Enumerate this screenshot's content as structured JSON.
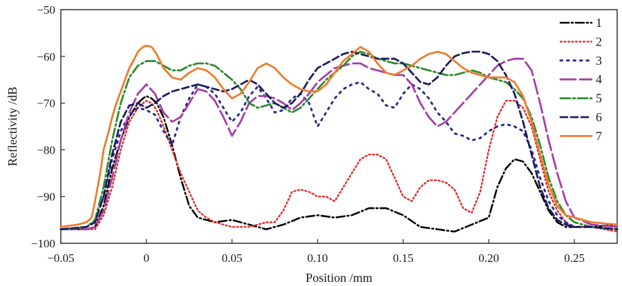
{
  "chart_data": {
    "type": "line",
    "title": "",
    "xlabel": "Position /mm",
    "ylabel": "Reflectivity /dB",
    "xlim": [
      -0.05,
      0.275
    ],
    "ylim": [
      -100,
      -50
    ],
    "xticks": [
      -0.05,
      0,
      0.05,
      0.1,
      0.15,
      0.2,
      0.25
    ],
    "xtick_labels": [
      "−0.05",
      "0",
      "0.05",
      "0.10",
      "0.15",
      "0.20",
      "0.25"
    ],
    "yticks": [
      -100,
      -90,
      -80,
      -70,
      -60,
      -50
    ],
    "ytick_labels": [
      "−100",
      "−90",
      "−80",
      "−70",
      "−60",
      "−50"
    ],
    "grid": false,
    "legend_position": "top-right",
    "series": [
      {
        "name": "1",
        "color": "#000000",
        "dash": "12,4,2,4",
        "width": 2.6,
        "x": [
          -0.05,
          -0.035,
          -0.03,
          -0.025,
          -0.02,
          -0.015,
          -0.01,
          -0.005,
          -0.002,
          0.0,
          0.003,
          0.006,
          0.01,
          0.015,
          0.02,
          0.025,
          0.03,
          0.035,
          0.04,
          0.05,
          0.06,
          0.07,
          0.08,
          0.09,
          0.1,
          0.11,
          0.12,
          0.13,
          0.14,
          0.15,
          0.16,
          0.17,
          0.18,
          0.19,
          0.2,
          0.205,
          0.21,
          0.215,
          0.22,
          0.225,
          0.23,
          0.235,
          0.24,
          0.245,
          0.25,
          0.26,
          0.275
        ],
        "y": [
          -97,
          -97,
          -96.5,
          -92,
          -84,
          -78,
          -73,
          -70,
          -69,
          -68.5,
          -69,
          -70,
          -73,
          -79,
          -86,
          -92,
          -94.5,
          -95,
          -95.5,
          -95,
          -96,
          -97,
          -96,
          -94.5,
          -94,
          -94.5,
          -94,
          -92.5,
          -92.5,
          -94,
          -96.5,
          -97,
          -97.5,
          -96,
          -94.5,
          -88,
          -84,
          -82,
          -82.5,
          -85,
          -89,
          -93,
          -95.5,
          -96.5,
          -96.5,
          -96.5,
          -96
        ]
      },
      {
        "name": "2",
        "color": "#e82424",
        "dash": "2,3.5",
        "width": 2.4,
        "x": [
          -0.05,
          -0.035,
          -0.03,
          -0.025,
          -0.02,
          -0.015,
          -0.01,
          -0.005,
          -0.002,
          0.0,
          0.003,
          0.006,
          0.01,
          0.015,
          0.02,
          0.025,
          0.03,
          0.035,
          0.04,
          0.05,
          0.06,
          0.07,
          0.075,
          0.08,
          0.085,
          0.09,
          0.095,
          0.1,
          0.105,
          0.11,
          0.115,
          0.12,
          0.125,
          0.13,
          0.135,
          0.14,
          0.145,
          0.15,
          0.155,
          0.16,
          0.165,
          0.17,
          0.175,
          0.18,
          0.185,
          0.19,
          0.195,
          0.2,
          0.205,
          0.21,
          0.215,
          0.22,
          0.225,
          0.23,
          0.235,
          0.24,
          0.245,
          0.25,
          0.26,
          0.275
        ],
        "y": [
          -97,
          -97,
          -97,
          -94,
          -88,
          -80,
          -74,
          -71,
          -70,
          -69.5,
          -70,
          -71.5,
          -75,
          -80,
          -85,
          -89,
          -93,
          -94.5,
          -95.5,
          -96.5,
          -96.5,
          -95.5,
          -95.5,
          -93,
          -89,
          -88.5,
          -89,
          -90,
          -90,
          -91,
          -88,
          -85,
          -82,
          -81,
          -81,
          -82,
          -86,
          -90,
          -91,
          -88,
          -86.5,
          -86.5,
          -87,
          -88.5,
          -92.5,
          -93.5,
          -89,
          -80,
          -73,
          -69.5,
          -69.5,
          -71,
          -75,
          -82,
          -89,
          -93,
          -95.5,
          -96.5,
          -96.5,
          -97.5
        ]
      },
      {
        "name": "3",
        "color": "#2a2a8f",
        "dash": "2.5,7",
        "width": 3.0,
        "x": [
          -0.05,
          -0.035,
          -0.03,
          -0.025,
          -0.02,
          -0.015,
          -0.01,
          -0.005,
          0.0,
          0.005,
          0.01,
          0.015,
          0.02,
          0.025,
          0.03,
          0.035,
          0.04,
          0.045,
          0.05,
          0.055,
          0.06,
          0.065,
          0.07,
          0.075,
          0.08,
          0.085,
          0.09,
          0.095,
          0.1,
          0.105,
          0.11,
          0.115,
          0.12,
          0.125,
          0.13,
          0.135,
          0.14,
          0.145,
          0.15,
          0.155,
          0.16,
          0.165,
          0.17,
          0.175,
          0.18,
          0.185,
          0.19,
          0.195,
          0.2,
          0.205,
          0.21,
          0.215,
          0.22,
          0.225,
          0.23,
          0.235,
          0.24,
          0.245,
          0.25,
          0.26,
          0.275
        ],
        "y": [
          -97,
          -96.5,
          -95.5,
          -90,
          -82,
          -76,
          -72.5,
          -71,
          -71.5,
          -72.5,
          -76,
          -79,
          -73,
          -69,
          -66,
          -66.5,
          -68,
          -71,
          -74,
          -72,
          -68.5,
          -66.5,
          -69,
          -72,
          -71.5,
          -69,
          -68,
          -70,
          -75,
          -72,
          -69,
          -67,
          -66,
          -65.5,
          -67,
          -68,
          -70.5,
          -71,
          -68,
          -66,
          -67,
          -69,
          -72,
          -74,
          -76.5,
          -77,
          -78,
          -77.5,
          -76,
          -75,
          -74.5,
          -75,
          -76,
          -80,
          -86,
          -91,
          -94,
          -95.5,
          -96.5,
          -96.5,
          -97
        ]
      },
      {
        "name": "4",
        "color": "#a63da6",
        "dash": "22,6",
        "width": 2.8,
        "x": [
          -0.05,
          -0.035,
          -0.03,
          -0.025,
          -0.02,
          -0.015,
          -0.01,
          -0.005,
          0.0,
          0.005,
          0.01,
          0.015,
          0.02,
          0.025,
          0.03,
          0.035,
          0.04,
          0.045,
          0.05,
          0.055,
          0.06,
          0.065,
          0.07,
          0.075,
          0.08,
          0.085,
          0.09,
          0.095,
          0.1,
          0.105,
          0.11,
          0.115,
          0.12,
          0.125,
          0.13,
          0.135,
          0.14,
          0.145,
          0.15,
          0.155,
          0.16,
          0.165,
          0.17,
          0.175,
          0.18,
          0.185,
          0.19,
          0.195,
          0.2,
          0.205,
          0.21,
          0.215,
          0.22,
          0.225,
          0.23,
          0.235,
          0.24,
          0.245,
          0.25,
          0.26,
          0.275
        ],
        "y": [
          -97,
          -97,
          -96.5,
          -93,
          -86,
          -78,
          -72,
          -68,
          -66,
          -68,
          -72,
          -74,
          -73,
          -70,
          -67,
          -67.5,
          -69.5,
          -73,
          -77,
          -74,
          -70,
          -68.5,
          -68.5,
          -69,
          -70,
          -71.5,
          -70,
          -68,
          -65.5,
          -64,
          -62.5,
          -62,
          -61.5,
          -61.5,
          -62.5,
          -63,
          -63.5,
          -64,
          -64,
          -66,
          -70,
          -73,
          -75,
          -74,
          -72,
          -70,
          -68,
          -66,
          -64,
          -62,
          -61,
          -60.5,
          -60.5,
          -63,
          -70,
          -78,
          -85,
          -91,
          -94.5,
          -96,
          -96.5
        ]
      },
      {
        "name": "5",
        "color": "#2e8a2e",
        "dash": "14,4,3,4",
        "width": 2.8,
        "x": [
          -0.05,
          -0.035,
          -0.03,
          -0.025,
          -0.02,
          -0.015,
          -0.01,
          -0.005,
          0.0,
          0.005,
          0.01,
          0.015,
          0.02,
          0.025,
          0.03,
          0.035,
          0.04,
          0.045,
          0.05,
          0.055,
          0.06,
          0.065,
          0.07,
          0.075,
          0.08,
          0.085,
          0.09,
          0.095,
          0.1,
          0.105,
          0.11,
          0.115,
          0.12,
          0.125,
          0.13,
          0.135,
          0.14,
          0.145,
          0.15,
          0.155,
          0.16,
          0.165,
          0.17,
          0.175,
          0.18,
          0.185,
          0.19,
          0.195,
          0.2,
          0.205,
          0.21,
          0.215,
          0.22,
          0.225,
          0.23,
          0.235,
          0.24,
          0.245,
          0.25,
          0.26,
          0.275
        ],
        "y": [
          -97,
          -96.5,
          -95,
          -88,
          -78,
          -70,
          -64.5,
          -62,
          -61,
          -61,
          -62,
          -63,
          -63,
          -62,
          -61.5,
          -61.5,
          -62,
          -63.5,
          -65,
          -67,
          -70,
          -71,
          -70.5,
          -70,
          -71,
          -72,
          -71,
          -69,
          -67,
          -65,
          -63.5,
          -62,
          -60,
          -59,
          -59.5,
          -60.5,
          -61,
          -61.5,
          -61.5,
          -62,
          -62.5,
          -63,
          -63.5,
          -64,
          -64,
          -63.5,
          -63,
          -63.5,
          -64.5,
          -65,
          -65.5,
          -67,
          -69,
          -73,
          -79,
          -86,
          -91,
          -94,
          -95.5,
          -96.5,
          -97
        ]
      },
      {
        "name": "6",
        "color": "#1c1c5e",
        "dash": "10,5",
        "width": 2.8,
        "x": [
          -0.05,
          -0.035,
          -0.03,
          -0.025,
          -0.02,
          -0.015,
          -0.01,
          -0.005,
          0.0,
          0.005,
          0.01,
          0.015,
          0.02,
          0.025,
          0.03,
          0.035,
          0.04,
          0.045,
          0.05,
          0.055,
          0.06,
          0.065,
          0.07,
          0.075,
          0.08,
          0.085,
          0.09,
          0.095,
          0.1,
          0.105,
          0.11,
          0.115,
          0.12,
          0.125,
          0.13,
          0.135,
          0.14,
          0.145,
          0.15,
          0.155,
          0.16,
          0.165,
          0.17,
          0.175,
          0.18,
          0.185,
          0.19,
          0.195,
          0.2,
          0.205,
          0.21,
          0.215,
          0.22,
          0.225,
          0.23,
          0.235,
          0.24,
          0.245,
          0.25,
          0.26,
          0.275
        ],
        "y": [
          -97,
          -96.5,
          -95.5,
          -90,
          -81,
          -74,
          -70.5,
          -70,
          -71,
          -70,
          -68.5,
          -67.5,
          -67,
          -66.5,
          -66,
          -66.5,
          -67,
          -67.5,
          -67,
          -66,
          -65,
          -66,
          -68,
          -70,
          -71,
          -70,
          -68,
          -65,
          -62.5,
          -61.5,
          -60.5,
          -59.5,
          -59,
          -59.5,
          -60,
          -60.5,
          -60.5,
          -60.5,
          -61.5,
          -63.5,
          -65.5,
          -66,
          -64.5,
          -62,
          -60,
          -59.3,
          -59,
          -59,
          -59.5,
          -61,
          -64,
          -68,
          -74,
          -81,
          -88,
          -92.5,
          -95,
          -96,
          -96.5,
          -96.5,
          -97
        ]
      },
      {
        "name": "7",
        "color": "#ee7b2e",
        "dash": "",
        "width": 2.8,
        "x": [
          -0.05,
          -0.04,
          -0.035,
          -0.032,
          -0.03,
          -0.027,
          -0.025,
          -0.022,
          -0.02,
          -0.018,
          -0.015,
          -0.012,
          -0.01,
          -0.007,
          -0.005,
          -0.002,
          0.0,
          0.003,
          0.006,
          0.01,
          0.015,
          0.02,
          0.025,
          0.03,
          0.035,
          0.04,
          0.045,
          0.05,
          0.055,
          0.06,
          0.065,
          0.07,
          0.075,
          0.08,
          0.085,
          0.09,
          0.095,
          0.1,
          0.105,
          0.11,
          0.115,
          0.12,
          0.125,
          0.13,
          0.135,
          0.14,
          0.145,
          0.15,
          0.155,
          0.16,
          0.165,
          0.17,
          0.175,
          0.18,
          0.185,
          0.19,
          0.195,
          0.2,
          0.205,
          0.21,
          0.215,
          0.22,
          0.225,
          0.23,
          0.235,
          0.24,
          0.245,
          0.25,
          0.255,
          0.26,
          0.275
        ],
        "y": [
          -96.5,
          -96,
          -95.5,
          -94.5,
          -91,
          -85,
          -80,
          -76,
          -73,
          -70.5,
          -67.5,
          -64.5,
          -62.5,
          -60.5,
          -59,
          -58,
          -57.7,
          -58,
          -59.5,
          -62.5,
          -64.5,
          -65,
          -63.5,
          -62.5,
          -63,
          -64.5,
          -67,
          -69,
          -68,
          -65.5,
          -62.5,
          -61.5,
          -62.5,
          -64.5,
          -66,
          -67,
          -67.5,
          -67.5,
          -66,
          -63.5,
          -61,
          -59.5,
          -58,
          -59,
          -61.5,
          -63.5,
          -64,
          -63,
          -62,
          -60.5,
          -59.5,
          -59,
          -59.5,
          -61,
          -62.5,
          -63.5,
          -64,
          -64.5,
          -64.5,
          -64.5,
          -65.5,
          -68.5,
          -74,
          -81,
          -87.5,
          -92,
          -94,
          -94.5,
          -95,
          -95.5,
          -96
        ]
      }
    ]
  }
}
